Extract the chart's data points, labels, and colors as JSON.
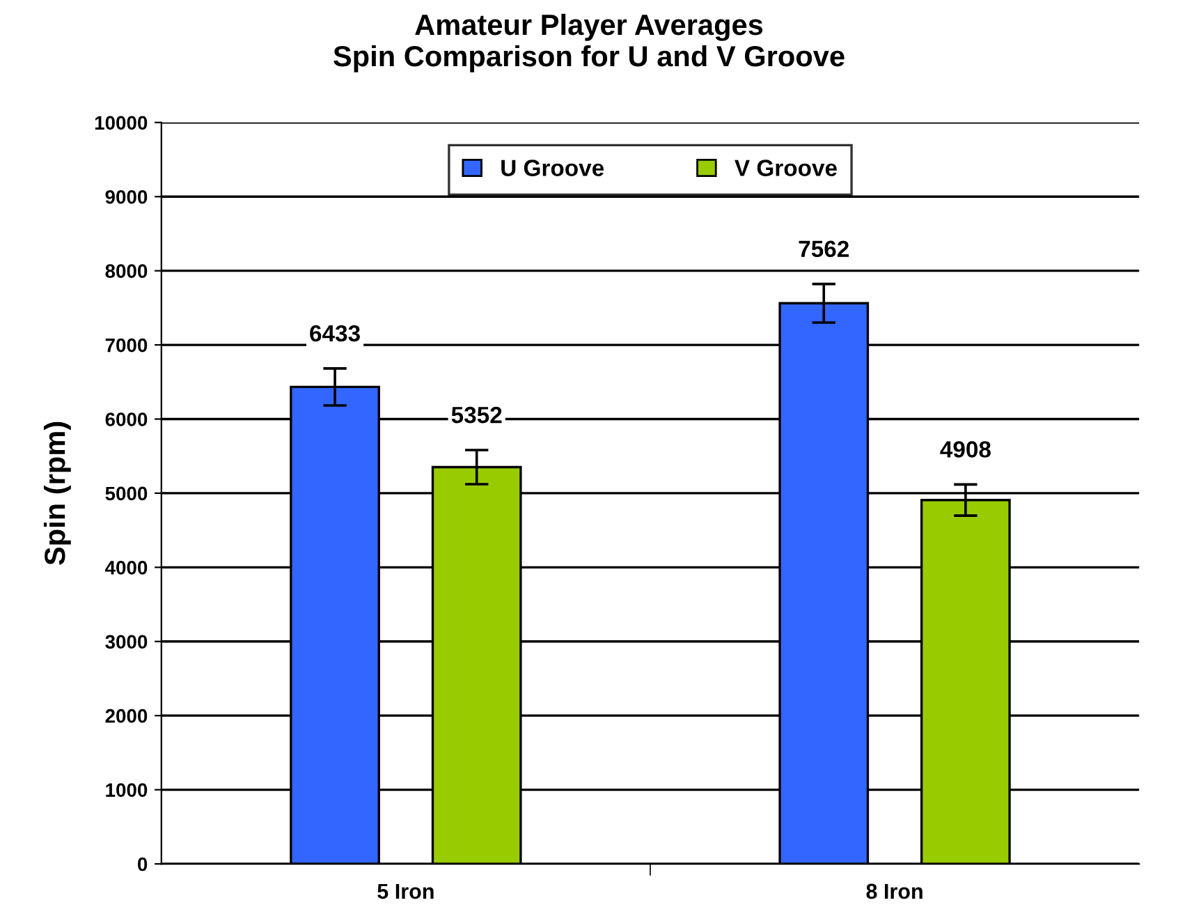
{
  "chart_data": {
    "type": "bar",
    "title": "Amateur Player Averages\nSpin Comparison for U and V Groove",
    "ylabel": "Spin (rpm)",
    "categories": [
      "5 Iron",
      "8 Iron"
    ],
    "series": [
      {
        "name": "U Groove",
        "color": "#3366ff",
        "values": [
          6433,
          7562
        ],
        "errors": [
          250,
          260
        ]
      },
      {
        "name": "V Groove",
        "color": "#99cc00",
        "values": [
          5352,
          4908
        ],
        "errors": [
          230,
          210
        ]
      }
    ],
    "ylim": [
      0,
      10000
    ],
    "yticks": [
      0,
      1000,
      2000,
      3000,
      4000,
      5000,
      6000,
      7000,
      8000,
      9000,
      10000
    ],
    "grid": "y",
    "legend": "top",
    "data_labels": true
  }
}
